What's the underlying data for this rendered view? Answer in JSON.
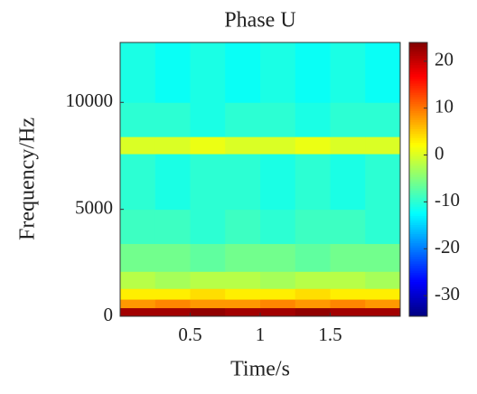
{
  "chart_data": {
    "type": "spectrogram",
    "title": "Phase U",
    "x_label": "Time/s",
    "y_label": "Frequency/Hz",
    "colormap": "jet",
    "x_bins": [
      0,
      0.25,
      0.5,
      0.75,
      1,
      1.25,
      1.5,
      1.75,
      2
    ],
    "y_bins": [
      0,
      400,
      800,
      1300,
      2100,
      3400,
      5000,
      7600,
      8400,
      10000,
      12800
    ],
    "values": [
      [
        22,
        22,
        23,
        22,
        22,
        23,
        22,
        22
      ],
      [
        8,
        9,
        8,
        8,
        9,
        8,
        9,
        8
      ],
      [
        3,
        3,
        4,
        3,
        3,
        4,
        3,
        3
      ],
      [
        -2,
        -3,
        -2,
        -2,
        -3,
        -2,
        -2,
        -3
      ],
      [
        -6,
        -6,
        -7,
        -6,
        -6,
        -7,
        -6,
        -6
      ],
      [
        -9,
        -9,
        -10,
        -9,
        -10,
        -9,
        -9,
        -10
      ],
      [
        -10,
        -11,
        -10,
        -10,
        -11,
        -10,
        -11,
        -10
      ],
      [
        0,
        0,
        1,
        0,
        0,
        1,
        0,
        0
      ],
      [
        -10,
        -10,
        -11,
        -10,
        -10,
        -11,
        -10,
        -10
      ],
      [
        -11,
        -12,
        -11,
        -12,
        -11,
        -12,
        -11,
        -12
      ]
    ],
    "xlim": [
      0,
      2
    ],
    "ylim": [
      0,
      12800
    ],
    "clim": [
      -34.4,
      24
    ],
    "xticks": [
      0.5,
      1,
      1.5
    ],
    "yticks": [
      0,
      5000,
      10000
    ],
    "cticks": [
      -30,
      -20,
      -10,
      0,
      10,
      20
    ]
  }
}
